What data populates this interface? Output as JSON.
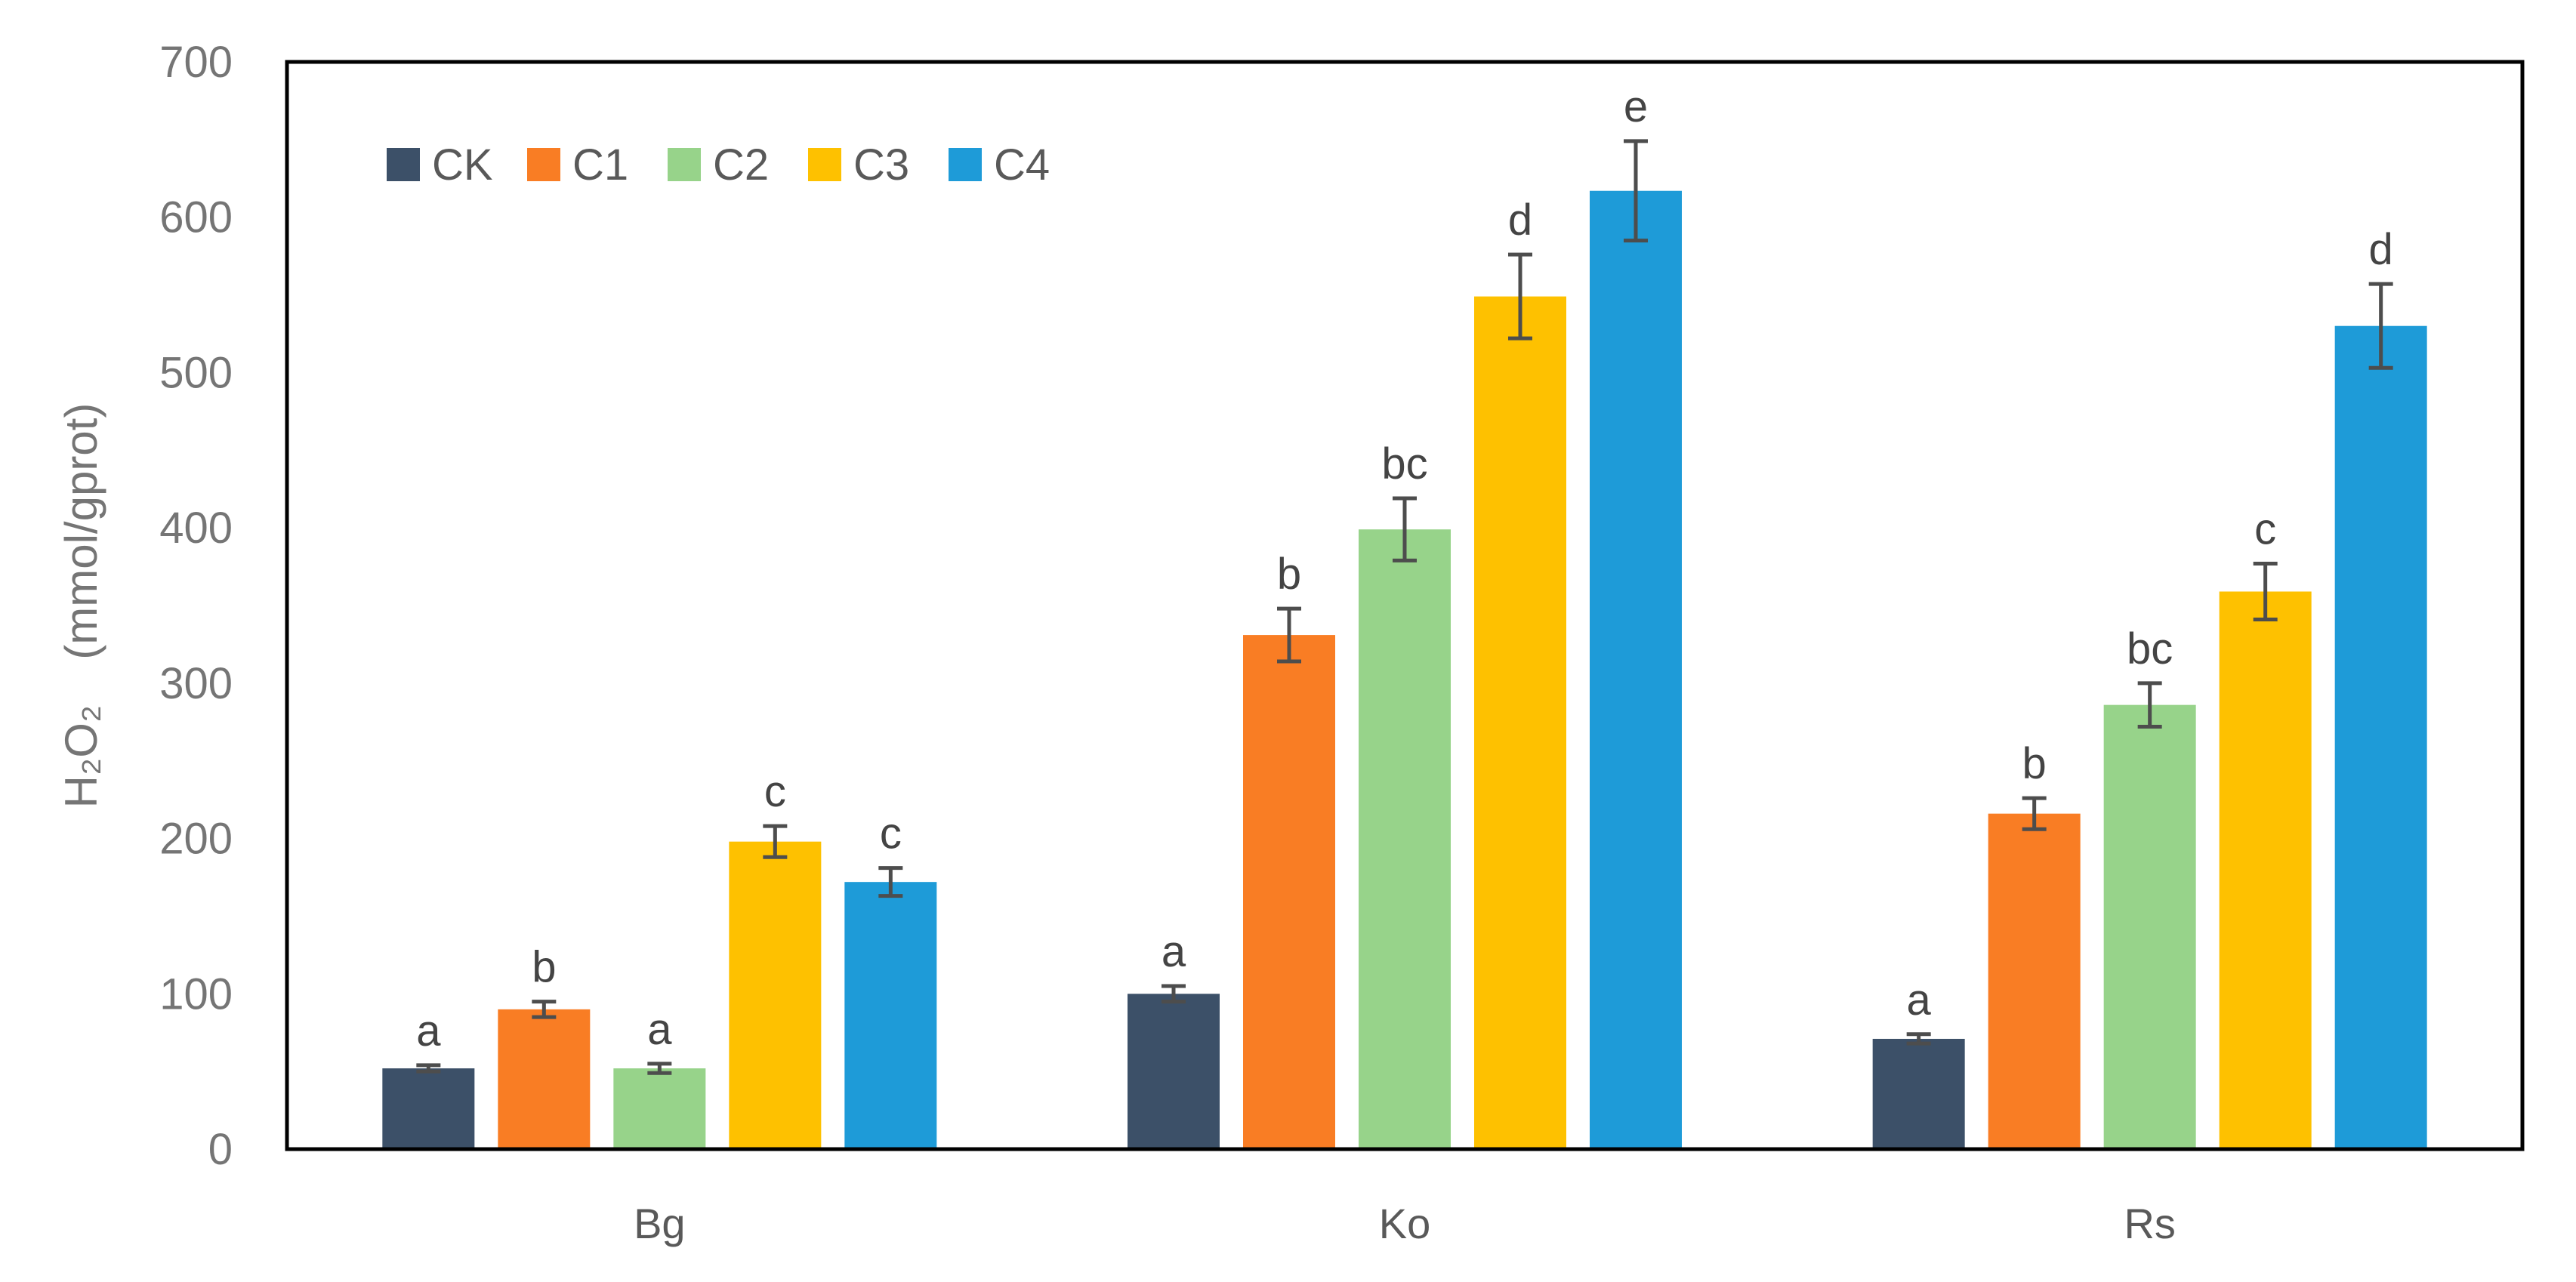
{
  "chart_data": {
    "type": "bar",
    "title": "",
    "xlabel": "",
    "ylabel": "H₂O₂　(mmol/gprot)",
    "ylim": [
      0,
      700
    ],
    "yticks": [
      0,
      100,
      200,
      300,
      400,
      500,
      600,
      700
    ],
    "ytick_labels": [
      "0",
      "100",
      "200",
      "300",
      "400",
      "500",
      "600",
      "700"
    ],
    "categories": [
      "Bg",
      "Ko",
      "Rs"
    ],
    "grid": false,
    "legend_position": "top-left",
    "series": [
      {
        "name": "CK",
        "color": "#3C5068",
        "values": [
          52,
          100,
          71
        ],
        "errors": [
          2,
          5,
          3
        ],
        "labels": [
          "a",
          "a",
          "a"
        ]
      },
      {
        "name": "C1",
        "color": "#F97D24",
        "values": [
          90,
          331,
          216
        ],
        "errors": [
          5,
          17,
          10
        ],
        "labels": [
          "b",
          "b",
          "b"
        ]
      },
      {
        "name": "C2",
        "color": "#97D38A",
        "values": [
          52,
          399,
          286
        ],
        "errors": [
          3,
          20,
          14
        ],
        "labels": [
          "a",
          "bc",
          "bc"
        ]
      },
      {
        "name": "C3",
        "color": "#FEC100",
        "values": [
          198,
          549,
          359
        ],
        "errors": [
          10,
          27,
          18
        ],
        "labels": [
          "c",
          "d",
          "c"
        ]
      },
      {
        "name": "C4",
        "color": "#1E9BD8",
        "values": [
          172,
          617,
          530
        ],
        "errors": [
          9,
          32,
          27
        ],
        "labels": [
          "c",
          "e",
          "d"
        ]
      }
    ]
  }
}
